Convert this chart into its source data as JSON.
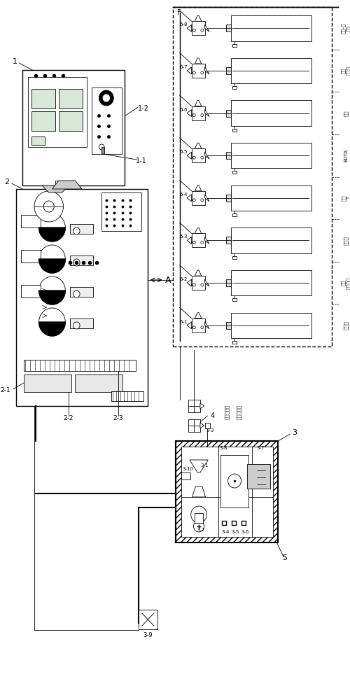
{
  "bg_color": "#ffffff",
  "reagents": [
    "甲基橙",
    "硫酸\n标准溶液",
    "氯化鑐",
    "钓黑\nT",
    "EDTA",
    "盐酸",
    "淀粉\n水溶液",
    "碳酸-磷\n化鈗"
  ],
  "pump_labels": [
    "6-1",
    "6-2",
    "6-3",
    "6-4",
    "6-5",
    "6-6",
    "6-7",
    "6-8"
  ],
  "label_1": "1",
  "label_1_1": "1-1",
  "label_1_2": "1-2",
  "label_2": "2",
  "label_2_1": "2-1",
  "label_2_2": "2-2",
  "label_2_3": "2-3",
  "label_3": "3",
  "label_3_1": "3-1",
  "label_3_2": "3-2",
  "label_3_3": "3-3",
  "label_3_4": "3-4",
  "label_3_5": "3-5",
  "label_3_6": "3-6",
  "label_3_7": "3-7",
  "label_3_8": "3-8",
  "label_3_9": "3-9",
  "label_3_10": "3-10",
  "label_4": "4",
  "label_5": "5",
  "label_A": "A",
  "label_F": "F",
  "text_raw_water": "生水取样水",
  "text_steam_sample": "蔭汽取样水"
}
